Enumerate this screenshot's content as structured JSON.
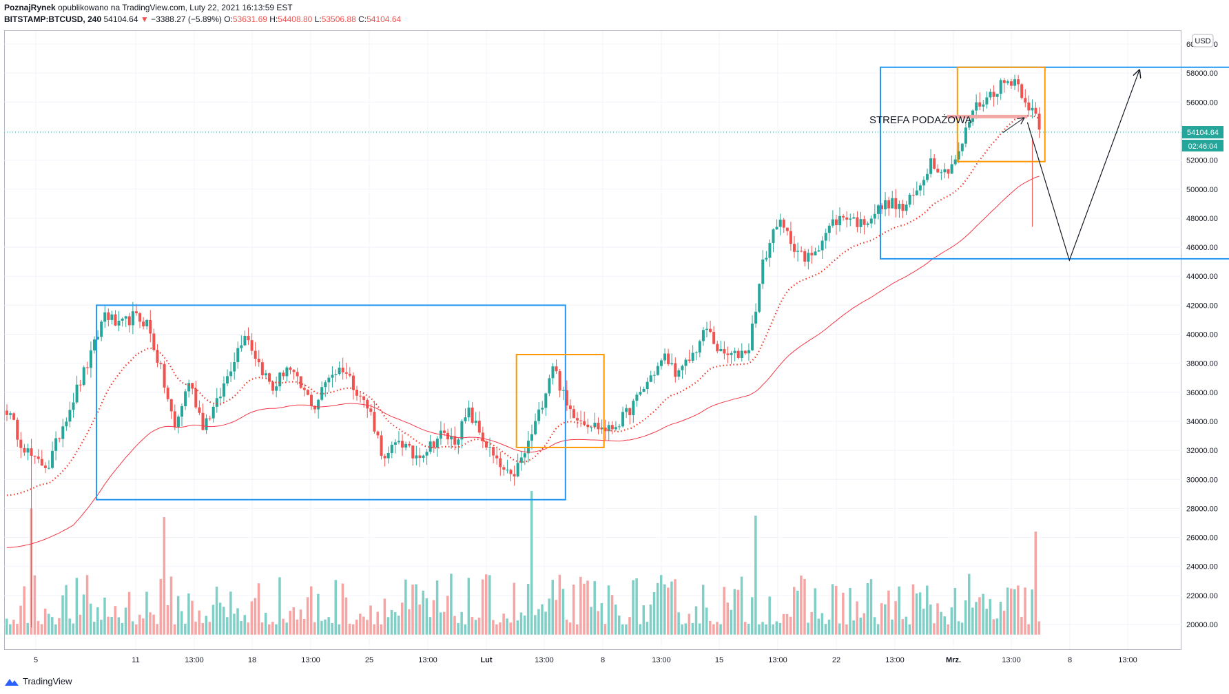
{
  "header": {
    "author": "PoznajRynek",
    "published": "opublikowano na TradingView.com, Luty 22, 2021 16:13:59 EST",
    "symbol": "BITSTAMP:BTCUSD, 240",
    "last": "54104.64",
    "change": "−3388.27 (−5.89%)",
    "open_label": "O:",
    "open": "53631.69",
    "high_label": "H:",
    "high": "54408.80",
    "low_label": "L:",
    "low": "53506.88",
    "close_label": "C:",
    "close": "54104.64"
  },
  "currency_button": "USD",
  "price_badge": "54104.64",
  "time_badge": "02:46:04",
  "annotation": "STREFA PODAŻOWA",
  "brand": "TradingView",
  "colors": {
    "up": "#26a69a",
    "down": "#ef5350",
    "ema_dotted": "#ef3b2c",
    "ma_line": "#f23645",
    "box_blue": "#2196f3",
    "box_orange": "#ff9800",
    "volume_up": "#7fcfc7",
    "volume_down": "#f5a5a3"
  },
  "chart_data": {
    "type": "candlestick",
    "y_ticks": [
      "60000.00",
      "58000.00",
      "56000.00",
      "54000.00",
      "52000.00",
      "50000.00",
      "48000.00",
      "46000.00",
      "44000.00",
      "42000.00",
      "40000.00",
      "38000.00",
      "36000.00",
      "34000.00",
      "32000.00",
      "30000.00",
      "28000.00",
      "26000.00",
      "24000.00",
      "22000.00",
      "20000.00"
    ],
    "x_ticks": [
      "5",
      "11",
      "13:00",
      "18",
      "13:00",
      "25",
      "13:00",
      "Lut",
      "13:00",
      "8",
      "13:00",
      "15",
      "13:00",
      "22",
      "13:00",
      "Mrz.",
      "13:00",
      "8",
      "13:00"
    ],
    "ylim": [
      19300,
      61200
    ],
    "close_path": [
      [
        0,
        34800
      ],
      [
        4,
        32600
      ],
      [
        8,
        31200
      ],
      [
        12,
        31000
      ],
      [
        16,
        33800
      ],
      [
        20,
        36200
      ],
      [
        24,
        38500
      ],
      [
        28,
        41500
      ],
      [
        32,
        40500
      ],
      [
        36,
        41200
      ],
      [
        40,
        40800
      ],
      [
        44,
        37500
      ],
      [
        48,
        33500
      ],
      [
        52,
        36800
      ],
      [
        56,
        33800
      ],
      [
        60,
        35200
      ],
      [
        64,
        37800
      ],
      [
        68,
        40200
      ],
      [
        72,
        38000
      ],
      [
        76,
        36200
      ],
      [
        80,
        37800
      ],
      [
        84,
        36300
      ],
      [
        88,
        35000
      ],
      [
        92,
        37200
      ],
      [
        96,
        37700
      ],
      [
        100,
        36200
      ],
      [
        104,
        34500
      ],
      [
        108,
        31200
      ],
      [
        112,
        32800
      ],
      [
        116,
        31600
      ],
      [
        120,
        32100
      ],
      [
        124,
        33100
      ],
      [
        128,
        32700
      ],
      [
        132,
        34600
      ],
      [
        136,
        32800
      ],
      [
        140,
        31100
      ],
      [
        144,
        30000
      ],
      [
        148,
        31800
      ],
      [
        152,
        34500
      ],
      [
        156,
        38000
      ],
      [
        160,
        35000
      ],
      [
        164,
        34200
      ],
      [
        168,
        33700
      ],
      [
        172,
        33400
      ],
      [
        176,
        34200
      ],
      [
        180,
        35500
      ],
      [
        184,
        37100
      ],
      [
        188,
        38400
      ],
      [
        192,
        37200
      ],
      [
        196,
        38600
      ],
      [
        200,
        40400
      ],
      [
        204,
        38600
      ],
      [
        208,
        38500
      ],
      [
        212,
        39100
      ],
      [
        216,
        44800
      ],
      [
        220,
        47800
      ],
      [
        224,
        46500
      ],
      [
        228,
        45000
      ],
      [
        232,
        46200
      ],
      [
        236,
        47700
      ],
      [
        240,
        48200
      ],
      [
        244,
        47600
      ],
      [
        248,
        48400
      ],
      [
        252,
        49100
      ],
      [
        256,
        48600
      ],
      [
        260,
        49800
      ],
      [
        264,
        52000
      ],
      [
        268,
        51200
      ],
      [
        272,
        52400
      ],
      [
        276,
        55500
      ],
      [
        280,
        56300
      ],
      [
        284,
        57200
      ],
      [
        288,
        57600
      ],
      [
        292,
        55800
      ],
      [
        296,
        54100
      ]
    ],
    "num_bars": 296,
    "volume_spikes": [
      [
        7,
        28000
      ],
      [
        45,
        27400
      ],
      [
        150,
        29200
      ],
      [
        214,
        27500
      ],
      [
        294,
        26400
      ]
    ],
    "series": [
      {
        "name": "",
        "style": "dotted"
      },
      {
        "name": "",
        "style": "line"
      }
    ],
    "volume_ylim": [
      19300,
      29500
    ],
    "shapes": {
      "blue_box_1": {
        "bar_from": 26,
        "bar_to": 160,
        "price_from": 28600,
        "price_to": 42000
      },
      "orange_box_1": {
        "bar_from": 146,
        "bar_to": 171,
        "price_from": 32200,
        "price_to": 38600
      },
      "blue_box_2": {
        "bar_from": 250,
        "bar_to": 386,
        "price_from": 45200,
        "price_to": 58400
      },
      "orange_box_2": {
        "bar_from": 272,
        "bar_to": 297,
        "price_from": 51900,
        "price_to": 58400
      },
      "supply_zone": {
        "bar_from": 269,
        "bar_to": 292,
        "price": 55000
      },
      "arrow_path": [
        [
          292,
          54600
        ],
        [
          304,
          45100
        ],
        [
          324,
          58200
        ]
      ],
      "small_arrow": {
        "bar_from": 285,
        "price_from": 53900,
        "bar_to": 291,
        "price_to": 54900
      }
    }
  }
}
